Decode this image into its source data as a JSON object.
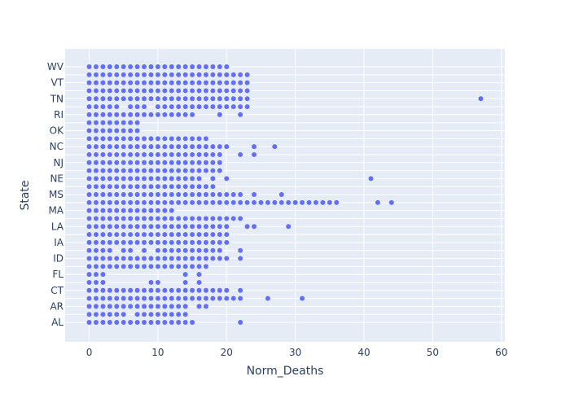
{
  "chart_data": {
    "type": "scatter",
    "xlabel": "Norm_Deaths",
    "ylabel": "State",
    "xlim": [
      -3.5,
      60.5
    ],
    "x_ticks": [
      0,
      10,
      20,
      30,
      40,
      50,
      60
    ],
    "y_categories": [
      "AL",
      "",
      "AR",
      "",
      "CT",
      "",
      "FL",
      "",
      "ID",
      "",
      "IA",
      "",
      "LA",
      "",
      "MA",
      "",
      "MS",
      "",
      "NE",
      "",
      "NJ",
      "",
      "NC",
      "",
      "OK",
      "",
      "RI",
      "",
      "TN",
      "",
      "VT",
      "",
      "WV"
    ],
    "y_ticks_shown": [
      "AL",
      "AR",
      "CT",
      "FL",
      "ID",
      "IA",
      "LA",
      "MA",
      "MS",
      "NE",
      "NJ",
      "NC",
      "OK",
      "RI",
      "TN",
      "VT",
      "WV"
    ],
    "grid": true,
    "marker_color": "#636efa",
    "background_color": "#e5ecf6",
    "rows": [
      {
        "state": "AL",
        "x": [
          0,
          1,
          2,
          3,
          4,
          5,
          6,
          7,
          8,
          9,
          10,
          11,
          12,
          13,
          14,
          15,
          22
        ]
      },
      {
        "state": "",
        "x": [
          0,
          1,
          2,
          3,
          4,
          5,
          7,
          8,
          9,
          10,
          11,
          12,
          13,
          14
        ]
      },
      {
        "state": "AR",
        "x": [
          0,
          1,
          2,
          3,
          4,
          5,
          6,
          7,
          8,
          9,
          10,
          11,
          12,
          13,
          14,
          16,
          17
        ]
      },
      {
        "state": "",
        "x": [
          0,
          1,
          2,
          3,
          4,
          5,
          6,
          7,
          8,
          9,
          10,
          11,
          12,
          13,
          14,
          15,
          16,
          17,
          18,
          19,
          20,
          21,
          22,
          26,
          31
        ]
      },
      {
        "state": "",
        "x": [
          0,
          1,
          2,
          3,
          4,
          5,
          6,
          7,
          8,
          9,
          10,
          11,
          12,
          13,
          14,
          15,
          16,
          17,
          18,
          19,
          20,
          22
        ]
      },
      {
        "state": "CT",
        "x": [
          0,
          1,
          2,
          9,
          10,
          14,
          16
        ]
      },
      {
        "state": "",
        "x": [
          0,
          1,
          2,
          14,
          16
        ]
      },
      {
        "state": "",
        "x": [
          0,
          1,
          2,
          3,
          4,
          5,
          6,
          7,
          8,
          9,
          10,
          11,
          12,
          13,
          14,
          15,
          16,
          17
        ]
      },
      {
        "state": "FL",
        "x": [
          0,
          1,
          2,
          3,
          4,
          5,
          6,
          7,
          8,
          9,
          10,
          11,
          12,
          13,
          14,
          15,
          16,
          17,
          18,
          19,
          20,
          22
        ]
      },
      {
        "state": "",
        "x": [
          0,
          1,
          2,
          3,
          5,
          6,
          8,
          10,
          11,
          12,
          13,
          14,
          15,
          16,
          17,
          18,
          19,
          22
        ]
      },
      {
        "state": "",
        "x": [
          0,
          1,
          2,
          3,
          4,
          5,
          6,
          7,
          8,
          9,
          10,
          11,
          12,
          13,
          14,
          15,
          16,
          17,
          18,
          19,
          20
        ]
      },
      {
        "state": "ID",
        "x": [
          0,
          1,
          2,
          3,
          4,
          5,
          6,
          7,
          8,
          9,
          10,
          11,
          12,
          13,
          14,
          15,
          16,
          17,
          18,
          19,
          20
        ]
      },
      {
        "state": "",
        "x": [
          0,
          1,
          2,
          3,
          4,
          5,
          6,
          7,
          8,
          9,
          10,
          11,
          12,
          13,
          14,
          15,
          16,
          17,
          18,
          19,
          20,
          23,
          24,
          29
        ]
      },
      {
        "state": "IA",
        "x": [
          0,
          1,
          2,
          3,
          4,
          5,
          6,
          7,
          8,
          9,
          10,
          11,
          12,
          13,
          14,
          15,
          16,
          17,
          18,
          19,
          20,
          21,
          22
        ]
      },
      {
        "state": "",
        "x": [
          0,
          1,
          2,
          3,
          4,
          5,
          6,
          7,
          8,
          9,
          10,
          11,
          12
        ]
      },
      {
        "state": "",
        "x": [
          0,
          1,
          2,
          3,
          4,
          5,
          6,
          7,
          8,
          9,
          10,
          11,
          12,
          13,
          14,
          15,
          16,
          17,
          18,
          19,
          20,
          21,
          22,
          23,
          24,
          25,
          26,
          27,
          28,
          29,
          30,
          31,
          32,
          33,
          34,
          35,
          36,
          42,
          44
        ]
      },
      {
        "state": "LA",
        "x": [
          0,
          1,
          2,
          3,
          4,
          5,
          6,
          7,
          8,
          9,
          10,
          11,
          12,
          13,
          14,
          15,
          16,
          17,
          18,
          19,
          20,
          21,
          22,
          24,
          28
        ]
      },
      {
        "state": "",
        "x": [
          0,
          1,
          2,
          3,
          4,
          5,
          6,
          7,
          8,
          9,
          10,
          11,
          12,
          13,
          14,
          15,
          16,
          17,
          18
        ]
      },
      {
        "state": "",
        "x": [
          0,
          1,
          2,
          3,
          4,
          5,
          6,
          7,
          8,
          9,
          10,
          11,
          12,
          13,
          14,
          15,
          16,
          18,
          20,
          41
        ]
      },
      {
        "state": "MA",
        "x": [
          0,
          1,
          2,
          3,
          4,
          5,
          6,
          7,
          8,
          9,
          10,
          11,
          12,
          13,
          14,
          15,
          16,
          17,
          18,
          19
        ]
      },
      {
        "state": "",
        "x": [
          0,
          1,
          2,
          3,
          4,
          5,
          6,
          7,
          8,
          9,
          10,
          11,
          12,
          13,
          14,
          15,
          16,
          17,
          18,
          19
        ]
      },
      {
        "state": "",
        "x": [
          0,
          1,
          2,
          3,
          4,
          5,
          6,
          7,
          8,
          9,
          10,
          11,
          12,
          13,
          14,
          15,
          16,
          17,
          18,
          19,
          22,
          24
        ]
      },
      {
        "state": "MS",
        "x": [
          0,
          1,
          2,
          3,
          4,
          5,
          6,
          7,
          8,
          9,
          10,
          11,
          12,
          13,
          14,
          15,
          16,
          17,
          18,
          19,
          20,
          24,
          27
        ]
      },
      {
        "state": "",
        "x": [
          0,
          1,
          2,
          3,
          4,
          5,
          6,
          7,
          8,
          9,
          10,
          11,
          12,
          13,
          14,
          15,
          16,
          17
        ]
      },
      {
        "state": "",
        "x": [
          0,
          1,
          2,
          3,
          4,
          5,
          6,
          7
        ]
      },
      {
        "state": "NE",
        "x": [
          0,
          1,
          2,
          3,
          4,
          5,
          6,
          7
        ]
      },
      {
        "state": "",
        "x": [
          0,
          1,
          2,
          3,
          4,
          5,
          6,
          7,
          8,
          9,
          10,
          11,
          12,
          13,
          14,
          15,
          19,
          22
        ]
      },
      {
        "state": "",
        "x": [
          0,
          1,
          2,
          3,
          4,
          6,
          7,
          8,
          10,
          11,
          12,
          13,
          14,
          15,
          16,
          17,
          18,
          19,
          20,
          21,
          22,
          23
        ]
      },
      {
        "state": "NJ",
        "x": [
          0,
          1,
          2,
          3,
          4,
          5,
          6,
          7,
          8,
          9,
          10,
          11,
          12,
          13,
          14,
          15,
          16,
          17,
          18,
          19,
          20,
          21,
          22,
          23,
          57
        ]
      },
      {
        "state": "",
        "x": [
          0,
          1,
          2,
          3,
          4,
          5,
          6,
          7,
          8,
          9,
          10,
          11,
          12,
          13,
          14,
          15,
          16,
          17,
          18,
          19,
          20,
          21,
          22,
          23
        ]
      },
      {
        "state": "",
        "x": [
          0,
          1,
          2,
          3,
          4,
          5,
          6,
          7,
          8,
          9,
          10,
          11,
          12,
          13,
          14,
          15,
          16,
          17,
          18,
          19,
          20,
          21,
          22,
          23
        ]
      },
      {
        "state": "NC",
        "x": [
          0,
          1,
          2,
          3,
          4,
          5,
          6,
          7,
          8,
          9,
          10,
          11,
          12,
          13,
          14,
          15,
          16,
          17,
          18,
          19,
          20,
          21,
          22,
          23
        ]
      },
      {
        "state": "",
        "x": [
          0,
          1,
          2,
          3,
          4,
          5,
          6,
          7,
          8,
          9,
          10,
          11,
          12,
          13,
          14,
          15,
          16,
          17,
          18,
          19,
          20
        ]
      }
    ]
  }
}
